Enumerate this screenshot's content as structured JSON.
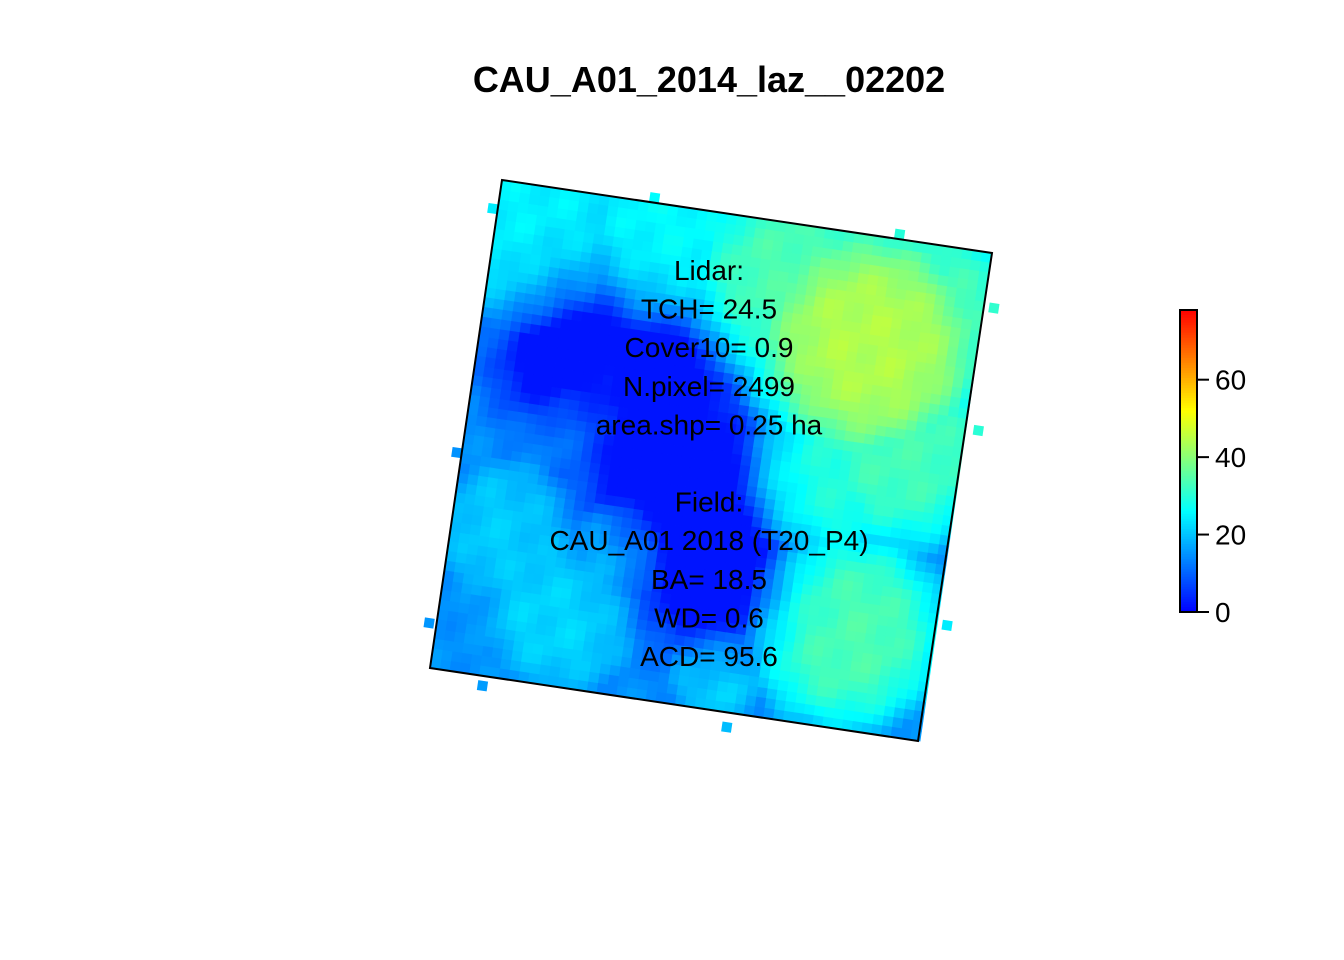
{
  "chart_data": {
    "type": "heatmap",
    "title": "CAU_A01_2014_laz__02202",
    "xlabel": "",
    "ylabel": "",
    "value_range": [
      0,
      78
    ],
    "colorbar": {
      "ticks": [
        0,
        20,
        40,
        60
      ],
      "tick_labels": [
        "0",
        "20",
        "40",
        "60"
      ],
      "colors": [
        "#0000ff",
        "#0080ff",
        "#00ffff",
        "#80ff80",
        "#ffff00",
        "#ff8000",
        "#ff0000"
      ],
      "placement": "right"
    },
    "annotation_lines": [
      "Lidar:",
      "TCH= 24.5",
      "Cover10= 0.9",
      "N.pixel= 2499",
      "area.shp= 0.25 ha",
      "",
      "Field:",
      "CAU_A01 2018 (T20_P4)",
      "BA= 18.5",
      "WD= 0.6",
      "ACD= 95.6"
    ],
    "lidar": {
      "label": "Lidar:",
      "TCH": 24.5,
      "Cover10": 0.9,
      "N_pixel": 2499,
      "area_shp_ha": 0.25
    },
    "field": {
      "label": "Field:",
      "plot": "CAU_A01 2018 (T20_P4)",
      "BA": 18.5,
      "WD": 0.6,
      "ACD": 95.6
    },
    "grid_size": 50,
    "canopy_crowns": [
      {
        "u": 0.08,
        "v": 0.08,
        "height": 25,
        "radius": 0.2
      },
      {
        "u": 0.35,
        "v": 0.06,
        "height": 26,
        "radius": 0.18
      },
      {
        "u": 0.62,
        "v": 0.12,
        "height": 34,
        "radius": 0.2
      },
      {
        "u": 0.78,
        "v": 0.22,
        "height": 44,
        "radius": 0.21
      },
      {
        "u": 0.9,
        "v": 0.12,
        "height": 33,
        "radius": 0.16
      },
      {
        "u": 0.88,
        "v": 0.42,
        "height": 33,
        "radius": 0.18
      },
      {
        "u": 0.74,
        "v": 0.5,
        "height": 30,
        "radius": 0.15
      },
      {
        "u": 0.82,
        "v": 0.8,
        "height": 34,
        "radius": 0.18
      },
      {
        "u": 0.25,
        "v": 0.85,
        "height": 22,
        "radius": 0.16
      },
      {
        "u": 0.12,
        "v": 0.7,
        "height": 21,
        "radius": 0.15
      },
      {
        "u": 0.05,
        "v": 0.45,
        "height": 15,
        "radius": 0.14
      },
      {
        "u": 0.22,
        "v": 0.48,
        "height": 17,
        "radius": 0.12
      },
      {
        "u": 0.58,
        "v": 0.92,
        "height": 23,
        "radius": 0.1
      },
      {
        "u": 0.5,
        "v": 0.25,
        "height": 19,
        "radius": 0.1
      },
      {
        "u": 0.35,
        "v": 0.7,
        "height": 22,
        "radius": 0.1
      }
    ],
    "canopy_gaps": [
      {
        "u": 0.42,
        "v": 0.52,
        "depth": 22,
        "radius": 0.17
      },
      {
        "u": 0.2,
        "v": 0.28,
        "depth": 14,
        "radius": 0.13
      },
      {
        "u": 0.55,
        "v": 0.75,
        "depth": 20,
        "radius": 0.14
      },
      {
        "u": 0.12,
        "v": 0.38,
        "depth": 10,
        "radius": 0.1
      },
      {
        "u": 0.4,
        "v": 0.3,
        "depth": 12,
        "radius": 0.1
      }
    ],
    "background_height": 15
  }
}
